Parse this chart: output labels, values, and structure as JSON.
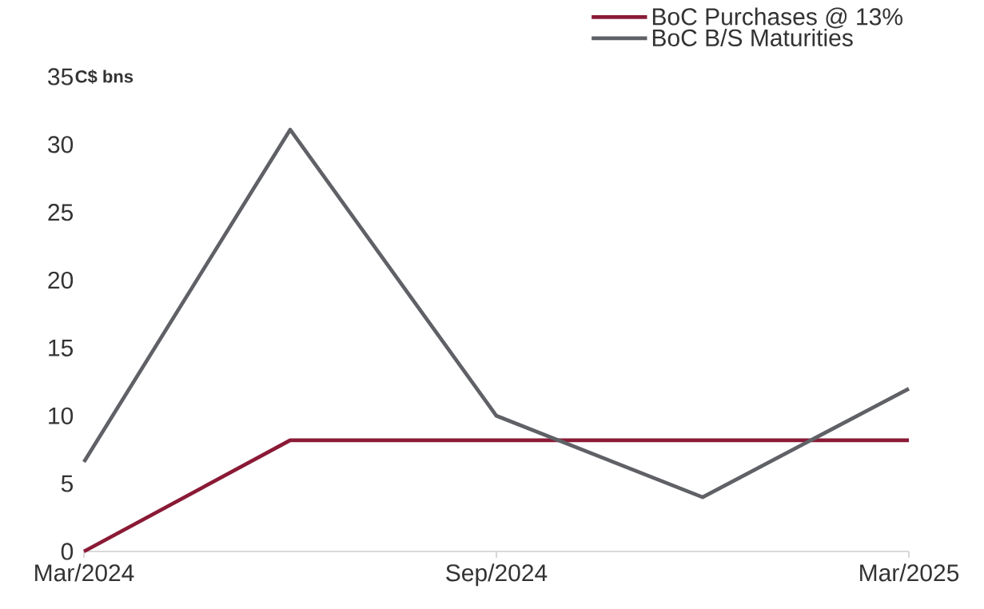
{
  "chart_data": {
    "type": "line",
    "ylabel": "C$ bns",
    "categories": [
      "Mar/2024",
      null,
      "Sep/2024",
      null,
      "Mar/2025"
    ],
    "series": [
      {
        "name": "BoC Purchases @ 13%",
        "color": "#8a1a36",
        "values": [
          0,
          8.2,
          8.2,
          8.2,
          8.2
        ]
      },
      {
        "name": "BoC B/S Maturities",
        "color": "#5f6166",
        "values": [
          6.6,
          31.1,
          10.0,
          4.0,
          12.0
        ]
      }
    ],
    "ylim": [
      0,
      35
    ],
    "yticks": [
      0,
      5,
      10,
      15,
      20,
      25,
      30,
      35
    ],
    "legend": "top right",
    "marker": "none",
    "line_style": "solid",
    "grid": false
  }
}
